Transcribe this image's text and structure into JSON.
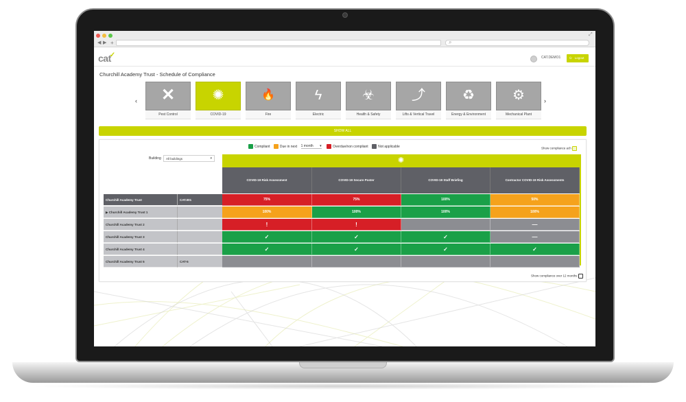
{
  "app": {
    "logo_text": "cat",
    "user": "CAT.DEMO1",
    "logout_label": "Logout",
    "page_title": "Churchill Academy Trust - Schedule of Compliance",
    "accent_color": "#c8d400"
  },
  "browser": {
    "new_tab": "+",
    "back": "◀",
    "forward": "▶",
    "search_glyph": "⌕",
    "traffic_lights": [
      "#ee5b53",
      "#f4be3e",
      "#5cc84a"
    ]
  },
  "nav": {
    "prev": "‹",
    "next": "›"
  },
  "categories": [
    {
      "label": "Pest Control",
      "icon": "cross-icon",
      "glyph": "✕",
      "active": false
    },
    {
      "label": "COVID-19",
      "icon": "virus-icon",
      "glyph": "✺",
      "active": true
    },
    {
      "label": "Fire",
      "icon": "fire-icon",
      "glyph": "🔥",
      "active": false
    },
    {
      "label": "Electric",
      "icon": "lightning-icon",
      "glyph": "ϟ",
      "active": false
    },
    {
      "label": "Health & Safety",
      "icon": "biohazard-icon",
      "glyph": "☣",
      "active": false
    },
    {
      "label": "Lifts & Vertical Travel",
      "icon": "stairs-icon",
      "glyph": "⤴",
      "active": false
    },
    {
      "label": "Energy & Environment",
      "icon": "recycle-icon",
      "glyph": "♻",
      "active": false
    },
    {
      "label": "Mechanical Plant",
      "icon": "gears-icon",
      "glyph": "⚙",
      "active": false
    }
  ],
  "show_all_label": "SHOW ALL",
  "legend": {
    "compliant": "Compliant",
    "due_in_next": "Due in next",
    "period_value": "1 month",
    "overdue": "Overdue/non compliant",
    "not_applicable": "Not applicable",
    "colors": {
      "compliant": "#1aa048",
      "due": "#f5a21c",
      "overdue": "#d61f26",
      "na": "#5f6066"
    }
  },
  "options": {
    "show_compliance_ach": "Show compliance ach",
    "show_compliance_12": "Show compliance over 12 months"
  },
  "filter": {
    "building_label": "Building",
    "building_value": "All buildings"
  },
  "banner_glyph": "✺",
  "columns": [
    "COVID-19 Risk Assessment",
    "COVID-19 Secure Poster",
    "COVID-19 Staff Briefing",
    "Contractor COVID-19 Risk Assessments"
  ],
  "rows": [
    {
      "name": "Churchill Academy Trust",
      "expand": "",
      "code": "CAT.001",
      "header": true,
      "cells": [
        {
          "s": "red",
          "t": "75%"
        },
        {
          "s": "red",
          "t": "75%"
        },
        {
          "s": "green",
          "t": "100%"
        },
        {
          "s": "amber",
          "t": "50%"
        }
      ]
    },
    {
      "name": "Churchill Academy Trust 1",
      "expand": "▶",
      "code": "",
      "header": false,
      "cells": [
        {
          "s": "amber",
          "t": "100%"
        },
        {
          "s": "green",
          "t": "100%"
        },
        {
          "s": "green",
          "t": "100%"
        },
        {
          "s": "amber",
          "t": "100%"
        }
      ]
    },
    {
      "name": "Churchill Academy Trust 2",
      "expand": "",
      "code": "",
      "header": false,
      "cells": [
        {
          "s": "red",
          "t": "!"
        },
        {
          "s": "red",
          "t": "!"
        },
        {
          "s": "grey",
          "t": ""
        },
        {
          "s": "grey",
          "t": "—"
        }
      ]
    },
    {
      "name": "Churchill Academy Trust 3",
      "expand": "",
      "code": "",
      "header": false,
      "cells": [
        {
          "s": "green",
          "t": "✓"
        },
        {
          "s": "green",
          "t": "✓"
        },
        {
          "s": "green",
          "t": "✓"
        },
        {
          "s": "grey",
          "t": "—"
        }
      ]
    },
    {
      "name": "Churchill Academy Trust 4",
      "expand": "",
      "code": "",
      "header": false,
      "cells": [
        {
          "s": "green",
          "t": "✓"
        },
        {
          "s": "green",
          "t": "✓"
        },
        {
          "s": "green",
          "t": "✓"
        },
        {
          "s": "green",
          "t": "✓"
        }
      ]
    },
    {
      "name": "Churchill Academy Trust 5",
      "expand": "",
      "code": "CAT-5",
      "header": false,
      "cells": [
        {
          "s": "grey",
          "t": ""
        },
        {
          "s": "grey",
          "t": ""
        },
        {
          "s": "grey",
          "t": ""
        },
        {
          "s": "grey",
          "t": ""
        }
      ]
    }
  ]
}
